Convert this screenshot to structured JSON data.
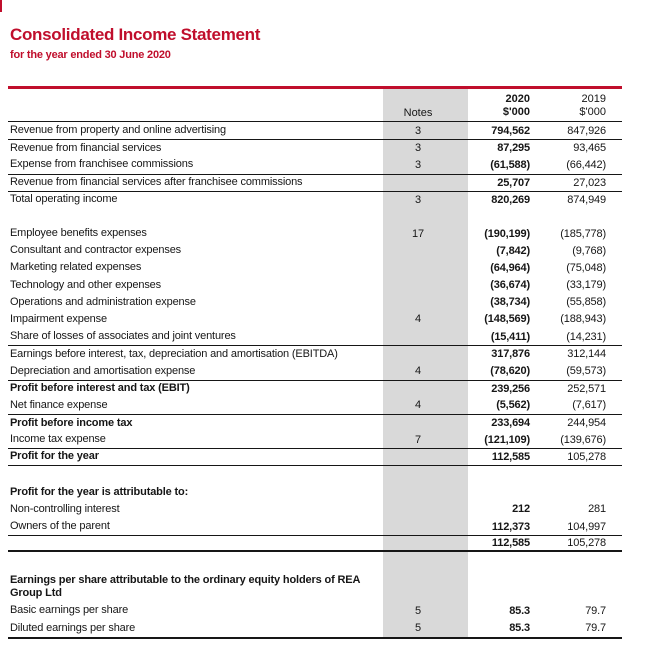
{
  "page": {
    "title": "Consolidated Income Statement",
    "subtitle": "for the year ended 30 June 2020"
  },
  "colors": {
    "brand_red": "#C00E2C",
    "column_highlight_gray": "#D9D9D9",
    "rule_black": "#161616"
  },
  "table": {
    "header": {
      "notes_label": "Notes",
      "col_2020_year": "2020",
      "col_2020_unit": "$'000",
      "col_2019_year": "2019",
      "col_2019_unit": "$'000"
    },
    "rows": [
      {
        "label": "Revenue from property and online advertising",
        "notes": "3",
        "v2020": "794,562",
        "v2019": "847,926"
      },
      {
        "label": "Revenue from financial services",
        "notes": "3",
        "v2020": "87,295",
        "v2019": "93,465"
      },
      {
        "label": "Expense from franchisee commissions",
        "notes": "3",
        "v2020": "(61,588)",
        "v2019": "(66,442)"
      },
      {
        "label": "Revenue from financial services after franchisee commissions",
        "v2020": "25,707",
        "v2019": "27,023"
      },
      {
        "label": "Total operating income",
        "notes": "3",
        "v2020": "820,269",
        "v2019": "874,949"
      },
      {
        "label": "Employee benefits expenses",
        "notes": "17",
        "v2020": "(190,199)",
        "v2019": "(185,778)"
      },
      {
        "label": "Consultant and contractor expenses",
        "v2020": "(7,842)",
        "v2019": "(9,768)"
      },
      {
        "label": "Marketing related expenses",
        "v2020": "(64,964)",
        "v2019": "(75,048)"
      },
      {
        "label": "Technology and other expenses",
        "v2020": "(36,674)",
        "v2019": "(33,179)"
      },
      {
        "label": "Operations and administration expense",
        "v2020": "(38,734)",
        "v2019": "(55,858)"
      },
      {
        "label": "Impairment expense",
        "notes": "4",
        "v2020": "(148,569)",
        "v2019": "(188,943)"
      },
      {
        "label": "Share of losses of associates and joint ventures",
        "v2020": "(15,411)",
        "v2019": "(14,231)"
      },
      {
        "label": "Earnings before interest, tax, depreciation and amortisation (EBITDA)",
        "v2020": "317,876",
        "v2019": "312,144"
      },
      {
        "label": "Depreciation and amortisation expense",
        "notes": "4",
        "v2020": "(78,620)",
        "v2019": "(59,573)"
      },
      {
        "label": "Profit before interest and tax (EBIT)",
        "v2020": "239,256",
        "v2019": "252,571"
      },
      {
        "label": "Net finance expense",
        "notes": "4",
        "v2020": "(5,562)",
        "v2019": "(7,617)"
      },
      {
        "label": "Profit before income tax",
        "v2020": "233,694",
        "v2019": "244,954"
      },
      {
        "label": "Income tax expense",
        "notes": "7",
        "v2020": "(121,109)",
        "v2019": "(139,676)"
      },
      {
        "label": "Profit for the year",
        "v2020": "112,585",
        "v2019": "105,278"
      },
      {
        "label": "Profit for the year is attributable to:"
      },
      {
        "label": "Non-controlling interest",
        "v2020": "212",
        "v2019": "281"
      },
      {
        "label": "Owners of the parent",
        "v2020": "112,373",
        "v2019": "104,997"
      },
      {
        "label": "",
        "v2020": "112,585",
        "v2019": "105,278"
      },
      {
        "label": "Earnings per share attributable to the ordinary equity holders of REA Group Ltd"
      },
      {
        "label": "Basic earnings per share",
        "notes": "5",
        "v2020": "85.3",
        "v2019": "79.7"
      },
      {
        "label": "Diluted earnings per share",
        "notes": "5",
        "v2020": "85.3",
        "v2019": "79.7"
      }
    ]
  }
}
